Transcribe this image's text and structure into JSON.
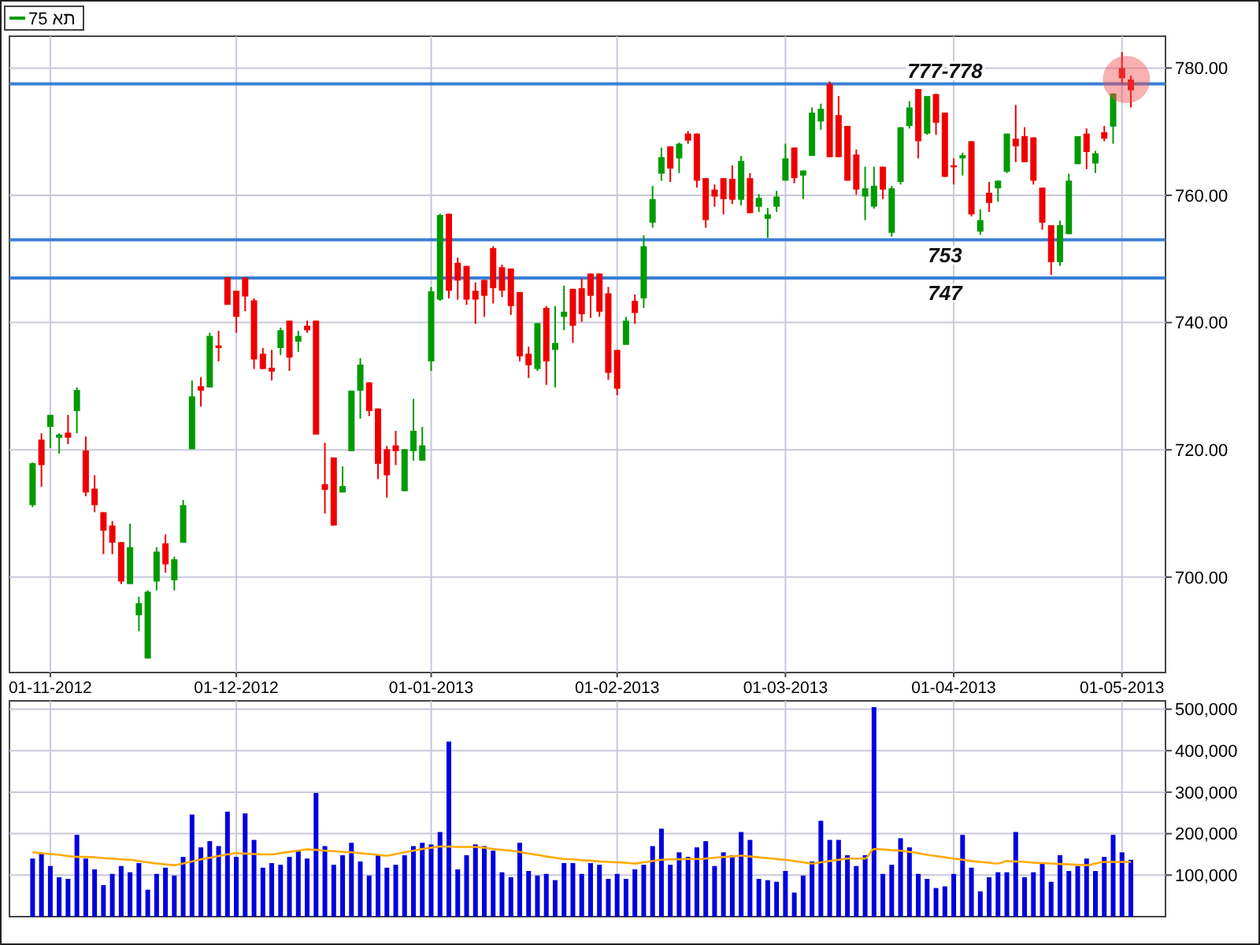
{
  "chart_data": [
    {
      "type": "candlestick",
      "categories": [
        null,
        null,
        "01-11-2012",
        null,
        null,
        null,
        null,
        null,
        null,
        null,
        null,
        null,
        null,
        null,
        null,
        null,
        null,
        null,
        null,
        null,
        null,
        null,
        null,
        "01-12-2012",
        null,
        null,
        null,
        null,
        null,
        null,
        null,
        null,
        null,
        null,
        null,
        null,
        null,
        null,
        null,
        null,
        null,
        null,
        null,
        null,
        null,
        "01-01-2013",
        null,
        null,
        null,
        null,
        null,
        null,
        null,
        null,
        null,
        null,
        null,
        null,
        null,
        null,
        null,
        null,
        null,
        null,
        null,
        null,
        "01-02-2013",
        null,
        null,
        null,
        null,
        null,
        null,
        null,
        null,
        null,
        null,
        null,
        null,
        null,
        null,
        null,
        null,
        null,
        null,
        "01-03-2013",
        null,
        null,
        null,
        null,
        null,
        null,
        null,
        null,
        null,
        null,
        null,
        null,
        null,
        null,
        null,
        null,
        null,
        null,
        "01-04-2013",
        null,
        null,
        null,
        null,
        null,
        null,
        null,
        null,
        null,
        null,
        null,
        null,
        null,
        null,
        null,
        null,
        null,
        null,
        "01-05-2013",
        null
      ],
      "series": [
        {
          "name": "תא 75",
          "ohlc": [
            [
              711.3,
              718,
              711,
              717.9
            ],
            [
              721.6,
              722.6,
              714.2,
              717.6
            ],
            [
              723.6,
              725.5,
              720.3,
              725.5
            ],
            [
              721.9,
              722.6,
              719.4,
              722.4
            ],
            [
              722.7,
              725.5,
              720.9,
              721.9
            ],
            [
              726.1,
              729.8,
              722.6,
              729.4
            ],
            [
              719.9,
              722.1,
              712.7,
              713.3
            ],
            [
              713.9,
              716,
              710.2,
              711.3
            ],
            [
              710.2,
              710.2,
              703.6,
              707.3
            ],
            [
              708.1,
              708.8,
              703.6,
              705.4
            ],
            [
              705.5,
              705.5,
              698.9,
              699.3
            ],
            [
              698.9,
              708.4,
              698.9,
              704.7
            ],
            [
              694,
              696.9,
              691.5,
              695.9
            ],
            [
              687.2,
              697.9,
              687.2,
              697.7
            ],
            [
              699.3,
              704.7,
              697.9,
              704
            ],
            [
              705.3,
              706.7,
              700.7,
              702
            ],
            [
              699.5,
              703.2,
              697.9,
              702.8
            ],
            [
              705.4,
              712.1,
              705.4,
              711.3
            ],
            [
              720.1,
              730.9,
              720.1,
              728.4
            ],
            [
              730,
              731.4,
              726.8,
              729.3
            ],
            [
              729.8,
              738.4,
              729.8,
              737.9
            ],
            [
              736.4,
              738.7,
              733.9,
              736
            ],
            [
              747.1,
              747.1,
              742.8,
              742.8
            ],
            [
              745,
              745,
              738.4,
              740.9
            ],
            [
              747.1,
              747.1,
              741.8,
              744.1
            ],
            [
              743.5,
              743.8,
              732.7,
              734.2
            ],
            [
              735.1,
              736,
              732.7,
              732.7
            ],
            [
              732.9,
              735.7,
              730.9,
              732.3
            ],
            [
              736,
              739.2,
              734.9,
              738.8
            ],
            [
              740.3,
              740.3,
              732.4,
              734.5
            ],
            [
              737,
              738.7,
              735.4,
              737.9
            ],
            [
              739.5,
              740.3,
              738.4,
              738.8
            ],
            [
              740.3,
              740.3,
              722.4,
              722.4
            ],
            [
              714.6,
              721.1,
              710,
              713.7
            ],
            [
              718.8,
              718.8,
              708.1,
              708.1
            ],
            [
              713.3,
              717.4,
              713.3,
              714.3
            ],
            [
              719.8,
              729.3,
              719.8,
              729.3
            ],
            [
              729.3,
              734.4,
              724.9,
              733.4
            ],
            [
              730.6,
              730.6,
              725.3,
              726.1
            ],
            [
              726.5,
              726.5,
              715.4,
              717.8
            ],
            [
              720.1,
              720.6,
              712.5,
              716
            ],
            [
              720.7,
              723,
              717.6,
              719.8
            ],
            [
              713.5,
              720.1,
              713.5,
              720.1
            ],
            [
              719.8,
              728,
              718.3,
              723
            ],
            [
              718.3,
              723.6,
              718.3,
              720.7
            ],
            [
              733.9,
              745.6,
              732.4,
              744.9
            ],
            [
              743.6,
              757.1,
              743.4,
              756.9
            ],
            [
              757.1,
              757.1,
              743.8,
              745
            ],
            [
              749.4,
              750.2,
              743.6,
              746.6
            ],
            [
              748.9,
              748.9,
              742.8,
              743.6
            ],
            [
              745,
              746.3,
              739.8,
              743.6
            ],
            [
              746.7,
              746.7,
              740.9,
              744.2
            ],
            [
              751.7,
              752,
              743,
              745.4
            ],
            [
              748.7,
              749.1,
              744,
              745
            ],
            [
              748.5,
              748.5,
              741.2,
              742.6
            ],
            [
              744.8,
              744.8,
              733.9,
              734.7
            ],
            [
              735.1,
              736.2,
              731.3,
              733.3
            ],
            [
              732.7,
              739.9,
              732.4,
              739.9
            ],
            [
              742.3,
              742.6,
              730.2,
              733.9
            ],
            [
              735.7,
              742.6,
              729.8,
              736.8
            ],
            [
              740.9,
              745.8,
              738.8,
              741.7
            ],
            [
              745.3,
              745.3,
              736.8,
              739.5
            ],
            [
              745.4,
              746.9,
              740.1,
              741.3
            ],
            [
              747.7,
              747.7,
              740.7,
              744.2
            ],
            [
              747.7,
              747.7,
              740.9,
              741.7
            ],
            [
              744.6,
              745.6,
              731,
              732.1
            ],
            [
              735.7,
              735.7,
              728.6,
              729.6
            ],
            [
              736.5,
              740.9,
              736.5,
              740.3
            ],
            [
              743.4,
              744.4,
              739.8,
              741.5
            ],
            [
              743.8,
              753.7,
              742.3,
              752
            ],
            [
              755.7,
              761.5,
              754.9,
              759.4
            ],
            [
              763.4,
              767.5,
              762.3,
              766
            ],
            [
              767.7,
              767.7,
              762.1,
              764.2
            ],
            [
              765.8,
              768.3,
              763.5,
              768.1
            ],
            [
              769.7,
              770.1,
              768.1,
              768.6
            ],
            [
              769.7,
              769.7,
              761.2,
              762.3
            ],
            [
              762.7,
              762.7,
              754.9,
              756.1
            ],
            [
              760.9,
              761.7,
              758.2,
              759.8
            ],
            [
              762.7,
              762.7,
              757,
              759.4
            ],
            [
              762.6,
              764.7,
              758.6,
              759.3
            ],
            [
              759.3,
              766.2,
              758.4,
              765.4
            ],
            [
              762.7,
              763.5,
              757.2,
              757.2
            ],
            [
              758.2,
              760.2,
              757.4,
              759.6
            ],
            [
              756.3,
              758,
              753.3,
              757
            ],
            [
              758.2,
              760.7,
              757.4,
              759.8
            ],
            [
              762.3,
              768.1,
              762.3,
              765.8
            ],
            [
              767.5,
              767.5,
              761.9,
              762.7
            ],
            [
              763.1,
              763.9,
              759.4,
              763.9
            ],
            [
              766.2,
              773.8,
              766.2,
              773
            ],
            [
              771.6,
              774.4,
              770.3,
              773.6
            ],
            [
              777.5,
              777.9,
              766,
              766
            ],
            [
              772.6,
              775.6,
              766,
              766
            ],
            [
              770.9,
              770.9,
              762.3,
              762.3
            ],
            [
              766.4,
              767.2,
              760.1,
              760.9
            ],
            [
              759.8,
              764.5,
              756.1,
              761.1
            ],
            [
              758.2,
              764.5,
              757.9,
              761.5
            ],
            [
              764.5,
              764.5,
              759.4,
              760.9
            ],
            [
              754.1,
              761.5,
              753.5,
              761.1
            ],
            [
              762.1,
              770.7,
              761.7,
              770.7
            ],
            [
              770.9,
              774.8,
              770.5,
              773.8
            ],
            [
              776.7,
              776.7,
              765.8,
              768.5
            ],
            [
              769.7,
              775.6,
              769.5,
              775.6
            ],
            [
              775.9,
              776,
              769.5,
              771.4
            ],
            [
              773,
              773,
              762.9,
              762.9
            ],
            [
              764.7,
              765.8,
              761.7,
              764.4
            ],
            [
              765.8,
              766.7,
              763.1,
              766.3
            ],
            [
              768.5,
              768.5,
              756.7,
              757
            ],
            [
              754.3,
              757.8,
              753.8,
              756.1
            ],
            [
              760.4,
              762.1,
              757.4,
              758.8
            ],
            [
              761.1,
              762.3,
              759,
              762.3
            ],
            [
              763.7,
              769.7,
              763.5,
              769.7
            ],
            [
              768.9,
              774.2,
              765.2,
              767.7
            ],
            [
              769.3,
              770.7,
              765.2,
              765.2
            ],
            [
              769.1,
              769.1,
              761.7,
              762.3
            ],
            [
              761.2,
              761.2,
              754.6,
              755.7
            ],
            [
              755.3,
              755.3,
              747.5,
              749.5
            ],
            [
              749.5,
              756,
              748.9,
              755.3
            ],
            [
              753.9,
              763.4,
              753.9,
              762.3
            ],
            [
              764.9,
              769.3,
              764.9,
              769.3
            ],
            [
              769.7,
              770.5,
              764.1,
              766.8
            ],
            [
              765,
              767,
              763.5,
              766.6
            ],
            [
              769.9,
              770.9,
              768.5,
              768.9
            ],
            [
              770.8,
              776,
              768.1,
              776
            ],
            [
              780,
              782.5,
              777.5,
              778.4
            ],
            [
              778.2,
              778.8,
              773.8,
              776.5
            ]
          ]
        }
      ],
      "ylim": [
        685,
        785
      ],
      "yticks": [
        {
          "value": 700,
          "label": "700.00"
        },
        {
          "value": 720,
          "label": "720.00"
        },
        {
          "value": 740,
          "label": "740.00"
        },
        {
          "value": 760,
          "label": "760.00"
        },
        {
          "value": 780,
          "label": "780.00"
        }
      ],
      "grid": true,
      "legend": "top left",
      "ref_lines": [
        {
          "axis": "y",
          "value": 777.5,
          "label": "777-778",
          "color": "#3a7fd5"
        },
        {
          "axis": "y",
          "value": 753,
          "label": "753",
          "color": "#3a7fd5"
        },
        {
          "axis": "y",
          "value": 747,
          "label": "747",
          "color": "#3a7fd5"
        }
      ]
    },
    {
      "type": "bar",
      "categories": [
        null,
        null,
        null,
        null,
        null,
        null,
        null,
        null,
        null,
        null,
        null,
        null,
        null,
        null,
        null,
        null,
        null,
        null,
        null,
        null,
        null,
        null,
        null,
        null,
        null,
        null,
        null,
        null,
        null,
        null,
        null,
        null,
        null,
        null,
        null,
        null,
        null,
        null,
        null,
        null,
        null,
        null,
        null,
        null,
        null,
        null,
        null,
        null,
        null,
        null,
        null,
        null,
        null,
        null,
        null,
        null,
        null,
        null,
        null,
        null,
        null,
        null,
        null,
        null,
        null,
        null,
        null,
        null,
        null,
        null,
        null,
        null,
        null,
        null,
        null,
        null,
        null,
        null,
        null,
        null,
        null,
        null,
        null,
        null,
        null,
        null,
        null,
        null,
        null,
        null,
        null,
        null,
        null,
        null,
        null,
        null,
        null,
        null,
        null,
        null,
        null,
        null,
        null,
        null,
        null,
        null,
        null,
        null,
        null,
        null,
        null,
        null,
        null,
        null,
        null,
        null,
        null,
        null,
        null,
        null,
        null,
        null,
        null,
        null,
        null
      ],
      "tick_labels": "y",
      "ylim": [
        0,
        520000
      ],
      "yticks": [
        {
          "value": 100000,
          "label": "100,000"
        },
        {
          "value": 200000,
          "label": "200,000"
        },
        {
          "value": 300000,
          "label": "300,000"
        },
        {
          "value": 400000,
          "label": "400,000"
        },
        {
          "value": 500000,
          "label": "500,000"
        }
      ],
      "grid": true,
      "series": [
        {
          "type": "bar",
          "color": "#0000dd",
          "values": [
            140000,
            152000,
            122000,
            95000,
            91000,
            197000,
            140000,
            114000,
            76000,
            103000,
            122000,
            107000,
            129000,
            65000,
            103000,
            118000,
            99000,
            144000,
            246000,
            167000,
            182000,
            170000,
            253000,
            144000,
            249000,
            185000,
            118000,
            129000,
            125000,
            144000,
            159000,
            140000,
            298000,
            170000,
            125000,
            148000,
            178000,
            133000,
            99000,
            148000,
            118000,
            125000,
            148000,
            170000,
            178000,
            174000,
            204000,
            422000,
            114000,
            148000,
            174000,
            170000,
            159000,
            107000,
            95000,
            178000,
            110000,
            99000,
            103000,
            88000,
            129000,
            129000,
            103000,
            129000,
            125000,
            91000,
            103000,
            91000,
            114000,
            125000,
            170000,
            212000,
            125000,
            155000,
            144000,
            167000,
            182000,
            122000,
            155000,
            148000,
            204000,
            185000,
            91000,
            88000,
            84000,
            110000,
            58000,
            99000,
            133000,
            231000,
            185000,
            185000,
            148000,
            122000,
            148000,
            505000,
            103000,
            125000,
            189000,
            167000,
            103000,
            91000,
            69000,
            73000,
            103000,
            197000,
            118000,
            61000,
            95000,
            107000,
            107000,
            204000,
            95000,
            107000,
            129000,
            84000,
            148000,
            110000,
            122000,
            140000,
            110000,
            144000,
            197000,
            155000,
            137000
          ]
        },
        {
          "type": "line",
          "color": "#ffaa00",
          "values": [
            155000,
            153000,
            151000,
            149000,
            146000,
            144000,
            144000,
            143000,
            141000,
            140000,
            138000,
            137000,
            134000,
            131000,
            128000,
            126000,
            124000,
            128000,
            133000,
            138000,
            142000,
            146000,
            150000,
            153000,
            152000,
            151000,
            150000,
            150000,
            153000,
            156000,
            159000,
            162000,
            161000,
            159000,
            158000,
            156000,
            155000,
            153000,
            151000,
            149000,
            147000,
            151000,
            155000,
            159000,
            163000,
            166000,
            169000,
            169000,
            168000,
            168000,
            168000,
            166000,
            163000,
            161000,
            159000,
            156000,
            152000,
            149000,
            145000,
            142000,
            139000,
            138000,
            136000,
            135000,
            133000,
            132000,
            131000,
            130000,
            128000,
            131000,
            134000,
            137000,
            138000,
            138000,
            139000,
            139000,
            140000,
            142000,
            144000,
            145000,
            147000,
            145000,
            143000,
            141000,
            139000,
            137000,
            134000,
            131000,
            128000,
            131000,
            134000,
            137000,
            140000,
            140000,
            140000,
            163000,
            162000,
            160000,
            159000,
            156000,
            153000,
            149000,
            146000,
            143000,
            140000,
            137000,
            134000,
            132000,
            130000,
            128000,
            134000,
            133000,
            132000,
            130000,
            129000,
            128000,
            127000,
            126000,
            125000,
            124000,
            128000,
            132000,
            132000,
            132000,
            132000
          ]
        }
      ]
    }
  ]
}
